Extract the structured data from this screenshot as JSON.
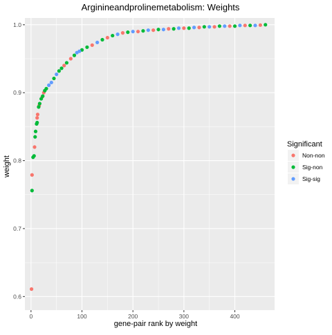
{
  "chart_data": {
    "type": "scatter",
    "title": "Arginineandprolinemetabolism: Weights",
    "xlabel": "gene-pair rank by weight",
    "ylabel": "weight",
    "xlim": [
      -12,
      478
    ],
    "ylim": [
      0.58,
      1.01
    ],
    "x_ticks": [
      0,
      100,
      200,
      300,
      400
    ],
    "x_tick_labels": [
      "0",
      "100",
      "200",
      "300",
      "400"
    ],
    "y_ticks": [
      0.6,
      0.7,
      0.8,
      0.9,
      1.0
    ],
    "y_tick_labels": [
      "0.6",
      "0.7",
      "0.8",
      "0.9",
      "1.0"
    ],
    "grid": true,
    "panel_background": "#ebebeb",
    "grid_color": "#ffffff",
    "legend": {
      "title": "Significant",
      "position": "right",
      "entries": [
        {
          "label": "Non-non",
          "color": "#f8766d"
        },
        {
          "label": "Sig-non",
          "color": "#00ba38"
        },
        {
          "label": "Sig-sig",
          "color": "#619cff"
        }
      ]
    },
    "series": [
      {
        "name": "Non-non",
        "color": "#f8766d",
        "points": [
          [
            1,
            0.611
          ],
          [
            2,
            0.779
          ],
          [
            7,
            0.82
          ],
          [
            12,
            0.863
          ],
          [
            13,
            0.868
          ],
          [
            16,
            0.881
          ],
          [
            22,
            0.894
          ],
          [
            25,
            0.9
          ],
          [
            65,
            0.94
          ],
          [
            78,
            0.95
          ],
          [
            120,
            0.97
          ],
          [
            150,
            0.981
          ],
          [
            180,
            0.988
          ],
          [
            210,
            0.99
          ],
          [
            240,
            0.992
          ],
          [
            270,
            0.994
          ],
          [
            300,
            0.995
          ],
          [
            330,
            0.996
          ],
          [
            360,
            0.997
          ],
          [
            390,
            0.998
          ],
          [
            420,
            0.999
          ],
          [
            450,
            0.9995
          ]
        ]
      },
      {
        "name": "Sig-non",
        "color": "#00ba38",
        "points": [
          [
            2,
            0.756
          ],
          [
            4,
            0.805
          ],
          [
            6,
            0.807
          ],
          [
            8,
            0.835
          ],
          [
            9,
            0.843
          ],
          [
            11,
            0.854
          ],
          [
            12,
            0.856
          ],
          [
            15,
            0.879
          ],
          [
            17,
            0.884
          ],
          [
            20,
            0.891
          ],
          [
            23,
            0.895
          ],
          [
            27,
            0.903
          ],
          [
            30,
            0.906
          ],
          [
            45,
            0.921
          ],
          [
            55,
            0.932
          ],
          [
            60,
            0.936
          ],
          [
            70,
            0.944
          ],
          [
            85,
            0.955
          ],
          [
            100,
            0.963
          ],
          [
            110,
            0.967
          ],
          [
            140,
            0.978
          ],
          [
            160,
            0.984
          ],
          [
            190,
            0.989
          ],
          [
            220,
            0.991
          ],
          [
            250,
            0.993
          ],
          [
            280,
            0.994
          ],
          [
            310,
            0.995
          ],
          [
            340,
            0.997
          ],
          [
            370,
            0.998
          ],
          [
            400,
            0.998
          ],
          [
            430,
            0.999
          ],
          [
            460,
            1.0
          ]
        ]
      },
      {
        "name": "Sig-sig",
        "color": "#619cff",
        "points": [
          [
            35,
            0.911
          ],
          [
            40,
            0.915
          ],
          [
            50,
            0.927
          ],
          [
            90,
            0.959
          ],
          [
            95,
            0.961
          ],
          [
            130,
            0.974
          ],
          [
            170,
            0.986
          ],
          [
            200,
            0.99
          ],
          [
            230,
            0.992
          ],
          [
            260,
            0.993
          ],
          [
            290,
            0.995
          ],
          [
            320,
            0.996
          ],
          [
            350,
            0.997
          ],
          [
            380,
            0.998
          ],
          [
            410,
            0.999
          ],
          [
            440,
            0.999
          ]
        ]
      }
    ]
  }
}
